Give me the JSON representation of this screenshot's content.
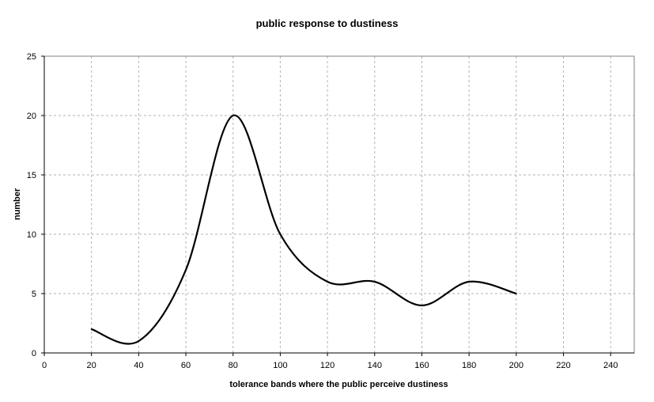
{
  "chart_data": {
    "type": "line",
    "title": "public response to dustiness",
    "xlabel": "tolerance bands where the public perceive dustiness",
    "ylabel": "number",
    "xlim": [
      0,
      250
    ],
    "ylim": [
      0,
      25
    ],
    "xticks": [
      0,
      20,
      40,
      60,
      80,
      100,
      120,
      140,
      160,
      180,
      200,
      220,
      240
    ],
    "yticks": [
      0,
      5,
      10,
      15,
      20,
      25
    ],
    "grid": true,
    "smooth": true,
    "series": [
      {
        "color": "#000000",
        "x": [
          20,
          40,
          60,
          80,
          100,
          120,
          140,
          160,
          180,
          200
        ],
        "y": [
          2,
          1,
          7,
          20,
          10,
          6,
          6,
          4,
          6,
          5
        ]
      }
    ]
  }
}
